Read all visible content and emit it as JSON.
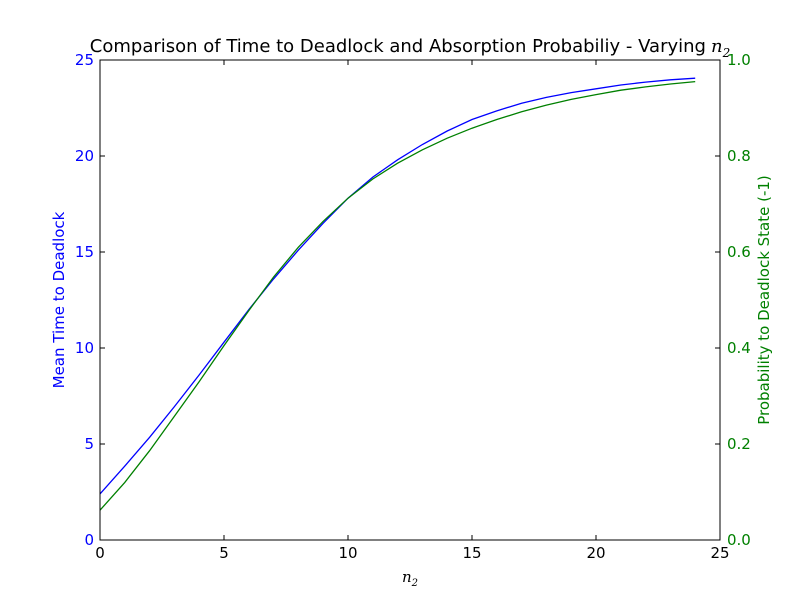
{
  "chart_data": {
    "type": "line",
    "title": "Comparison of Time to Deadlock and Absorption Probabiliy - Varying",
    "title_math": "n",
    "title_math_sub": "2",
    "xlabel_math": "n",
    "xlabel_math_sub": "2",
    "ylabel_left": "Mean Time to Deadlock",
    "ylabel_right": "Probability to Deadlock State (-1)",
    "xlim": [
      0,
      25
    ],
    "ylim_left": [
      0,
      25
    ],
    "ylim_right": [
      0,
      1.0
    ],
    "x_ticks": [
      "0",
      "5",
      "10",
      "15",
      "20",
      "25"
    ],
    "y_left_ticks": [
      "0",
      "5",
      "10",
      "15",
      "20",
      "25"
    ],
    "y_right_ticks": [
      "0.0",
      "0.2",
      "0.4",
      "0.6",
      "0.8",
      "1.0"
    ],
    "grid": false,
    "colors": {
      "left_axis": "#0000ff",
      "right_axis": "#008000",
      "frame": "#000000"
    },
    "series": [
      {
        "axis": "left",
        "color": "#0000ff",
        "x": [
          0,
          1,
          2,
          3,
          4,
          5,
          6,
          7,
          8,
          9,
          10,
          11,
          12,
          13,
          14,
          15,
          16,
          17,
          18,
          19,
          20,
          21,
          22,
          23,
          24
        ],
        "values": [
          2.4,
          3.85,
          5.35,
          6.95,
          8.6,
          10.3,
          12.0,
          13.6,
          15.1,
          16.5,
          17.8,
          18.9,
          19.8,
          20.6,
          21.3,
          21.9,
          22.35,
          22.75,
          23.05,
          23.3,
          23.5,
          23.7,
          23.85,
          23.97,
          24.05
        ]
      },
      {
        "axis": "right",
        "color": "#008000",
        "x": [
          0,
          1,
          2,
          3,
          4,
          5,
          6,
          7,
          8,
          9,
          10,
          11,
          12,
          13,
          14,
          15,
          16,
          17,
          18,
          19,
          20,
          21,
          22,
          23,
          24
        ],
        "values": [
          0.062,
          0.12,
          0.186,
          0.258,
          0.33,
          0.405,
          0.478,
          0.548,
          0.61,
          0.664,
          0.712,
          0.752,
          0.785,
          0.813,
          0.837,
          0.858,
          0.876,
          0.892,
          0.906,
          0.918,
          0.928,
          0.937,
          0.944,
          0.95,
          0.955
        ]
      }
    ]
  }
}
